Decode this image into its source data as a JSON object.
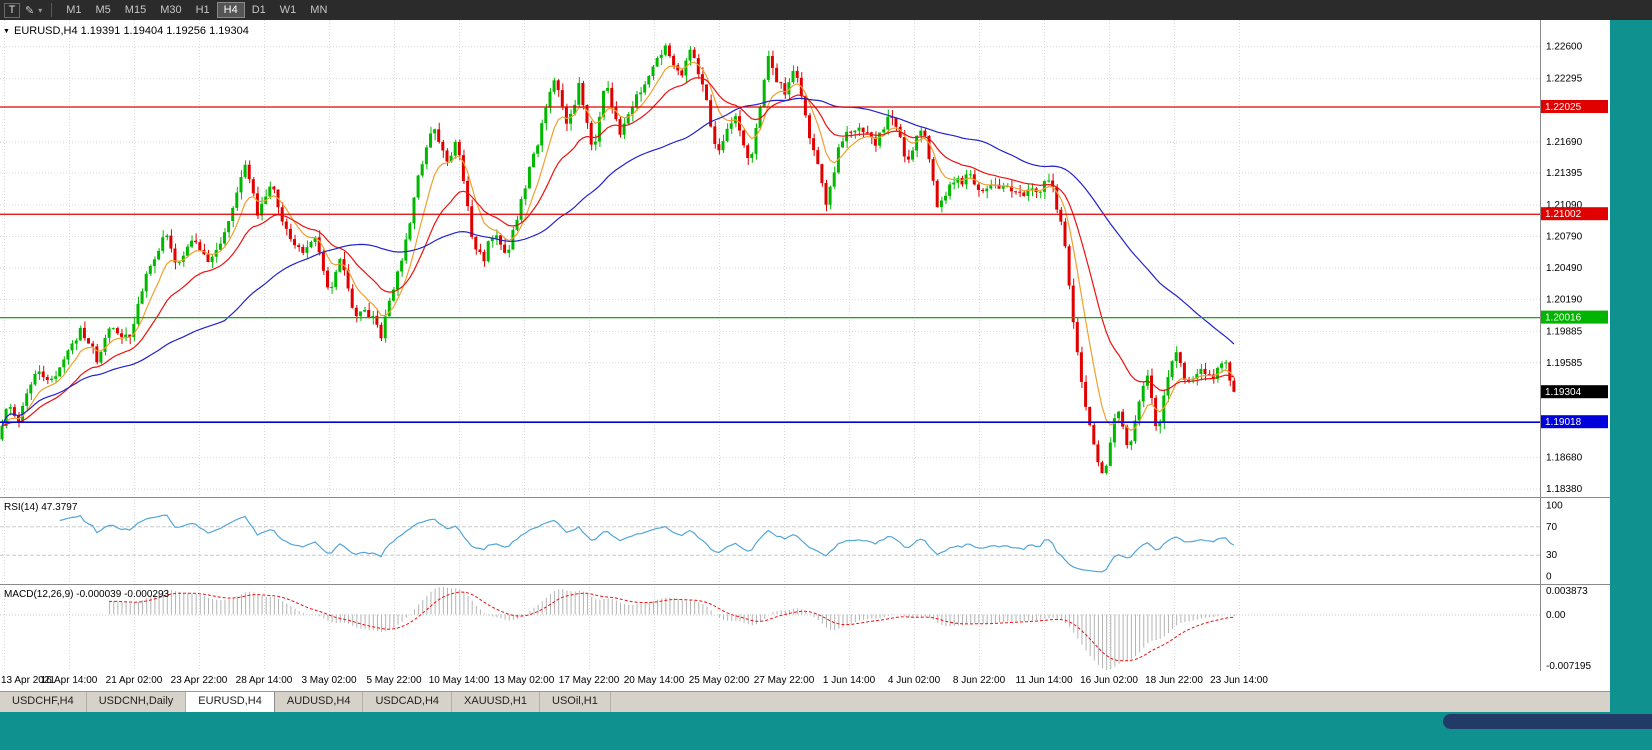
{
  "toolbar": {
    "tool_button": "T",
    "icons": {
      "draw_tool": "✎",
      "dropdown": "▾"
    },
    "timeframes": [
      "M1",
      "M5",
      "M15",
      "M30",
      "H1",
      "H4",
      "D1",
      "W1",
      "MN"
    ],
    "active_timeframe": "H4"
  },
  "chart": {
    "title": "EURUSD,H4",
    "ohlc": {
      "open": "1.19391",
      "high": "1.19404",
      "low": "1.19256",
      "close": "1.19304"
    }
  },
  "indicators": {
    "rsi": {
      "label": "RSI(14)",
      "value": "47.3797"
    },
    "macd": {
      "label": "MACD(12,26,9)",
      "values": "-0.000039 -0.000293"
    }
  },
  "tabs": [
    "USDCHF,H4",
    "USDCNH,Daily",
    "EURUSD,H4",
    "AUDUSD,H4",
    "USDCAD,H4",
    "XAUUSD,H1",
    "USOil,H1"
  ],
  "active_tab": "EURUSD,H4",
  "colors": {
    "workspace_teal": "#0f9190",
    "toolbar_bg": "#2b2b2b",
    "up": "#00b800",
    "down": "#e00000",
    "grid": "#d9d9d9",
    "rsi": "#53a6d8",
    "macd_hist": "#b4b4b4",
    "macd_signal": "#ee1111"
  },
  "chart_data": {
    "type": "candlestick",
    "symbol": "EURUSD",
    "timeframe": "H4",
    "bars": 300,
    "price_min": 1.183,
    "price_max": 1.2285,
    "current_price": {
      "value": 1.19304,
      "label": "1.19304",
      "bg": "#000000"
    },
    "y_axis_labels": [
      1.226,
      1.22295,
      1.2169,
      1.21395,
      1.2109,
      1.2079,
      1.2049,
      1.2019,
      1.19885,
      1.19585,
      1.1868,
      1.1838
    ],
    "x_axis_labels": [
      "13 Apr 2021",
      "16 Apr 14:00",
      "21 Apr 02:00",
      "23 Apr 22:00",
      "28 Apr 14:00",
      "3 May 02:00",
      "5 May 22:00",
      "10 May 14:00",
      "13 May 02:00",
      "17 May 22:00",
      "20 May 14:00",
      "25 May 02:00",
      "27 May 22:00",
      "1 Jun 14:00",
      "4 Jun 02:00",
      "8 Jun 22:00",
      "11 Jun 14:00",
      "16 Jun 02:00",
      "18 Jun 22:00",
      "23 Jun 14:00"
    ],
    "hlines": [
      {
        "price": 1.22025,
        "label": "1.22025",
        "color": "#e00000",
        "width": 1.3
      },
      {
        "price": 1.21002,
        "label": "1.21002",
        "color": "#e00000",
        "width": 1.3
      },
      {
        "price": 1.20016,
        "label": "1.20016",
        "color": "#00b400",
        "width": 1.3
      },
      {
        "price": 1.19018,
        "label": "1.19018",
        "color": "#0000dd",
        "width": 1.6
      }
    ],
    "moving_averages": [
      {
        "period": 8,
        "type": "ema",
        "color": "#f0a030"
      },
      {
        "period": 21,
        "type": "ema",
        "color": "#ee1111"
      },
      {
        "period": 55,
        "type": "sma",
        "color": "#2222cc"
      }
    ],
    "candle_noise": 0.001,
    "price_anchors": [
      [
        0.0,
        1.1885
      ],
      [
        0.008,
        1.192
      ],
      [
        0.016,
        1.19
      ],
      [
        0.03,
        1.1952
      ],
      [
        0.042,
        1.1938
      ],
      [
        0.055,
        1.197
      ],
      [
        0.068,
        1.199
      ],
      [
        0.08,
        1.1962
      ],
      [
        0.093,
        1.1995
      ],
      [
        0.106,
        1.1978
      ],
      [
        0.12,
        1.2038
      ],
      [
        0.135,
        1.208
      ],
      [
        0.146,
        1.2048
      ],
      [
        0.158,
        1.2075
      ],
      [
        0.17,
        1.205
      ],
      [
        0.185,
        1.2088
      ],
      [
        0.2,
        1.215
      ],
      [
        0.21,
        1.21
      ],
      [
        0.22,
        1.213
      ],
      [
        0.232,
        1.209
      ],
      [
        0.245,
        1.206
      ],
      [
        0.257,
        1.2078
      ],
      [
        0.268,
        1.2022
      ],
      [
        0.278,
        1.2058
      ],
      [
        0.288,
        1.1998
      ],
      [
        0.298,
        1.201
      ],
      [
        0.31,
        1.1985
      ],
      [
        0.325,
        1.2048
      ],
      [
        0.34,
        1.2132
      ],
      [
        0.352,
        1.218
      ],
      [
        0.362,
        1.215
      ],
      [
        0.372,
        1.217
      ],
      [
        0.383,
        1.2082
      ],
      [
        0.392,
        1.2055
      ],
      [
        0.402,
        1.2085
      ],
      [
        0.412,
        1.2058
      ],
      [
        0.424,
        1.2115
      ],
      [
        0.438,
        1.2175
      ],
      [
        0.45,
        1.223
      ],
      [
        0.46,
        1.2182
      ],
      [
        0.47,
        1.222
      ],
      [
        0.482,
        1.2155
      ],
      [
        0.492,
        1.2228
      ],
      [
        0.503,
        1.2175
      ],
      [
        0.515,
        1.2205
      ],
      [
        0.527,
        1.2235
      ],
      [
        0.54,
        1.2263
      ],
      [
        0.551,
        1.223
      ],
      [
        0.561,
        1.226
      ],
      [
        0.572,
        1.2215
      ],
      [
        0.582,
        1.2155
      ],
      [
        0.595,
        1.2195
      ],
      [
        0.609,
        1.2145
      ],
      [
        0.623,
        1.225
      ],
      [
        0.635,
        1.2215
      ],
      [
        0.645,
        1.2235
      ],
      [
        0.657,
        1.2175
      ],
      [
        0.67,
        1.211
      ],
      [
        0.682,
        1.217
      ],
      [
        0.695,
        1.2185
      ],
      [
        0.71,
        1.2168
      ],
      [
        0.723,
        1.2195
      ],
      [
        0.735,
        1.215
      ],
      [
        0.748,
        1.2182
      ],
      [
        0.76,
        1.211
      ],
      [
        0.772,
        1.213
      ],
      [
        0.785,
        1.2135
      ],
      [
        0.798,
        1.2122
      ],
      [
        0.812,
        1.2128
      ],
      [
        0.825,
        1.2118
      ],
      [
        0.84,
        1.2125
      ],
      [
        0.852,
        1.2128
      ],
      [
        0.862,
        1.2085
      ],
      [
        0.87,
        1.2
      ],
      [
        0.878,
        1.193
      ],
      [
        0.886,
        1.188
      ],
      [
        0.895,
        1.1846
      ],
      [
        0.902,
        1.19
      ],
      [
        0.908,
        1.1915
      ],
      [
        0.915,
        1.187
      ],
      [
        0.922,
        1.1918
      ],
      [
        0.93,
        1.1948
      ],
      [
        0.938,
        1.189
      ],
      [
        0.946,
        1.1938
      ],
      [
        0.954,
        1.1972
      ],
      [
        0.962,
        1.1935
      ],
      [
        0.972,
        1.1952
      ],
      [
        0.982,
        1.194
      ],
      [
        0.992,
        1.1962
      ],
      [
        1.0,
        1.193
      ]
    ],
    "rsi": {
      "period": 14,
      "levels": [
        "100",
        "70",
        "30",
        "0"
      ],
      "level_lines": [
        70,
        30
      ]
    },
    "macd": {
      "fast": 12,
      "slow": 26,
      "signal": 9,
      "range": [
        -0.007195,
        0.003873
      ],
      "axis_labels": [
        "0.003873",
        "0.00",
        "-0.007195"
      ]
    }
  }
}
